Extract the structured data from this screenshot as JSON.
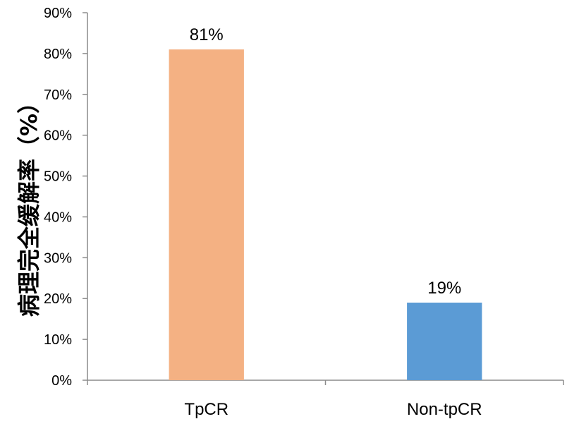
{
  "chart_data": {
    "type": "bar",
    "categories": [
      "TpCR",
      "Non-tpCR"
    ],
    "values": [
      81,
      19
    ],
    "data_labels": [
      "81%",
      "19%"
    ],
    "colors": [
      "#F4B183",
      "#5B9BD5"
    ],
    "title": "",
    "xlabel": "",
    "ylabel": "病理完全缓解率（%）",
    "ylim": [
      0,
      90
    ],
    "yticks": [
      0,
      10,
      20,
      30,
      40,
      50,
      60,
      70,
      80,
      90
    ],
    "ytick_labels": [
      "0%",
      "10%",
      "20%",
      "30%",
      "40%",
      "50%",
      "60%",
      "70%",
      "80%",
      "90%"
    ],
    "grid": false,
    "legend": "none"
  }
}
